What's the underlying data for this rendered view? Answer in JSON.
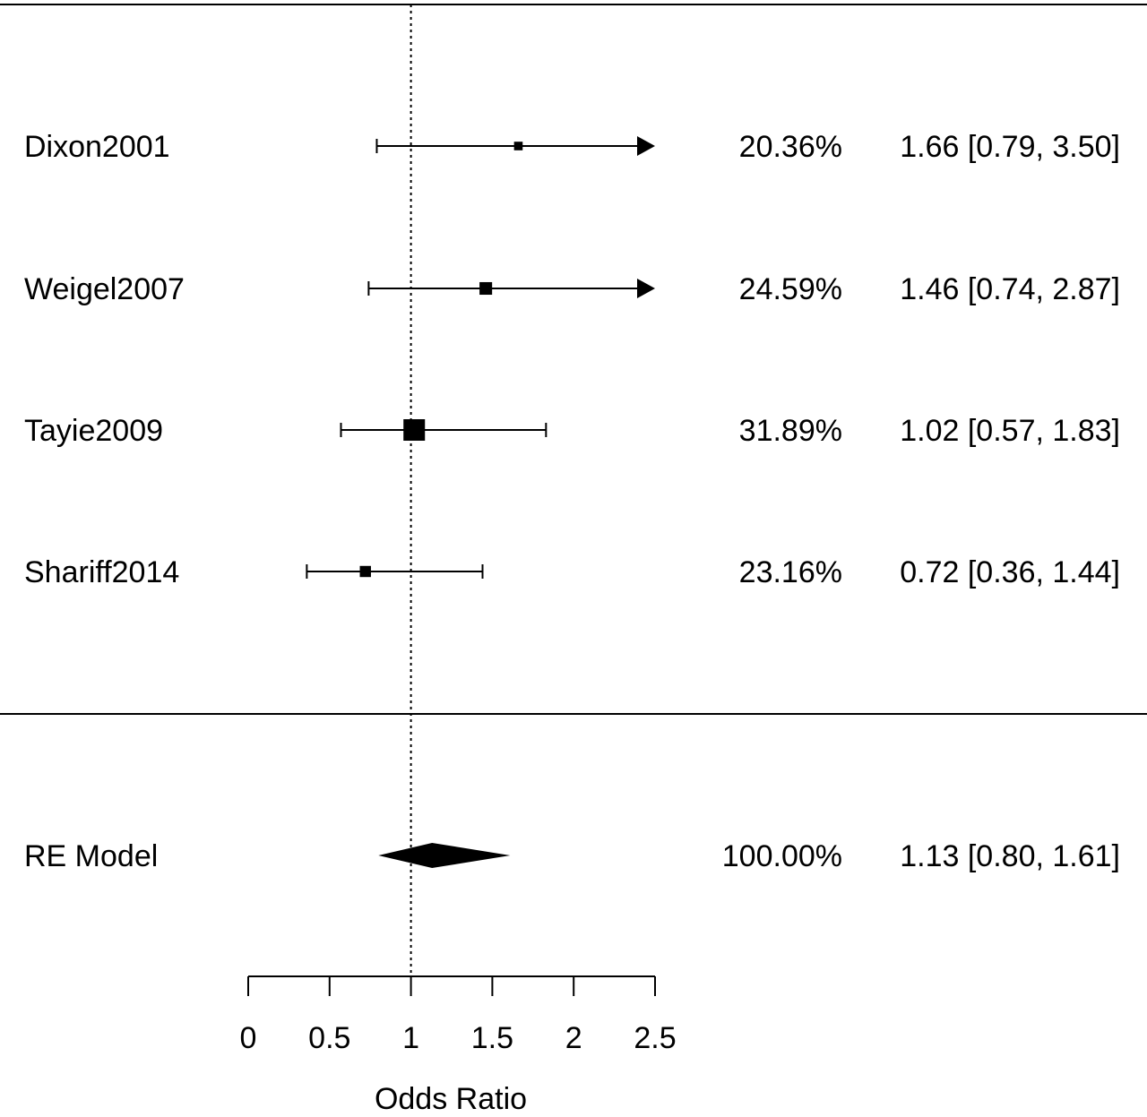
{
  "chart_data": {
    "type": "forest",
    "xlabel": "Odds Ratio",
    "xlim": [
      0,
      2.5
    ],
    "xticks": [
      "0",
      "0.5",
      "1",
      "1.5",
      "2",
      "2.5"
    ],
    "xtick_values": [
      0,
      0.5,
      1,
      1.5,
      2,
      2.5
    ],
    "reference_line": 1,
    "studies": [
      {
        "label": "Dixon2001",
        "or": 1.66,
        "lower": 0.79,
        "upper": 3.5,
        "weight": 20.36,
        "weight_text": "20.36%",
        "ci_text": "1.66 [0.79, 3.50]"
      },
      {
        "label": "Weigel2007",
        "or": 1.46,
        "lower": 0.74,
        "upper": 2.87,
        "weight": 24.59,
        "weight_text": "24.59%",
        "ci_text": "1.46 [0.74, 2.87]"
      },
      {
        "label": "Tayie2009",
        "or": 1.02,
        "lower": 0.57,
        "upper": 1.83,
        "weight": 31.89,
        "weight_text": "31.89%",
        "ci_text": "1.02 [0.57, 1.83]"
      },
      {
        "label": "Shariff2014",
        "or": 0.72,
        "lower": 0.36,
        "upper": 1.44,
        "weight": 23.16,
        "weight_text": "23.16%",
        "ci_text": "0.72 [0.36, 1.44]"
      }
    ],
    "summary": {
      "label": "RE Model",
      "or": 1.13,
      "lower": 0.8,
      "upper": 1.61,
      "weight_text": "100.00%",
      "ci_text": "1.13 [0.80, 1.61]"
    }
  }
}
